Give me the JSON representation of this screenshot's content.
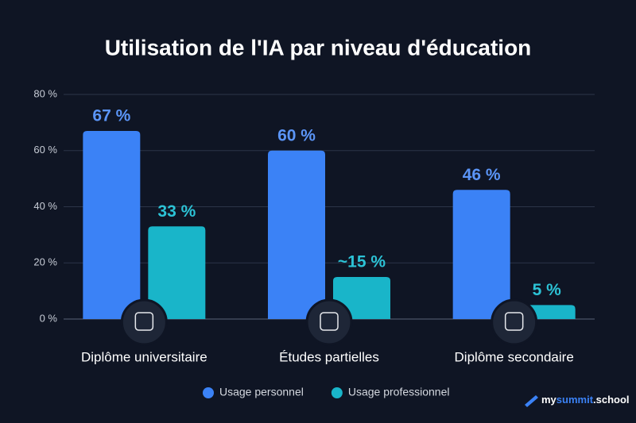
{
  "chart_data": {
    "type": "bar",
    "title": "Utilisation de l'IA par niveau d'éducation",
    "categories": [
      "Diplôme universitaire",
      "Études partielles",
      "Diplôme secondaire"
    ],
    "series": [
      {
        "name": "Usage personnel",
        "color": "#3b82f6",
        "label_color": "#5b95f7",
        "values": [
          67,
          60,
          46
        ],
        "value_labels": [
          "67 %",
          "60 %",
          "46 %"
        ]
      },
      {
        "name": "Usage professionnel",
        "color": "#19b5c9",
        "label_color": "#2cc3d6",
        "values": [
          33,
          15,
          5
        ],
        "value_labels": [
          "33 %",
          "~15 %",
          "5 %"
        ]
      }
    ],
    "ylim": [
      0,
      80
    ],
    "yticks": [
      {
        "value": 0,
        "label": "0 %"
      },
      {
        "value": 20,
        "label": "20 %"
      },
      {
        "value": 40,
        "label": "40 %"
      },
      {
        "value": 60,
        "label": "60 %"
      },
      {
        "value": 80,
        "label": "80 %"
      }
    ],
    "grid": true,
    "legend": "bottom"
  },
  "watermark": {
    "parts": [
      "my",
      "summit",
      ".school"
    ]
  }
}
